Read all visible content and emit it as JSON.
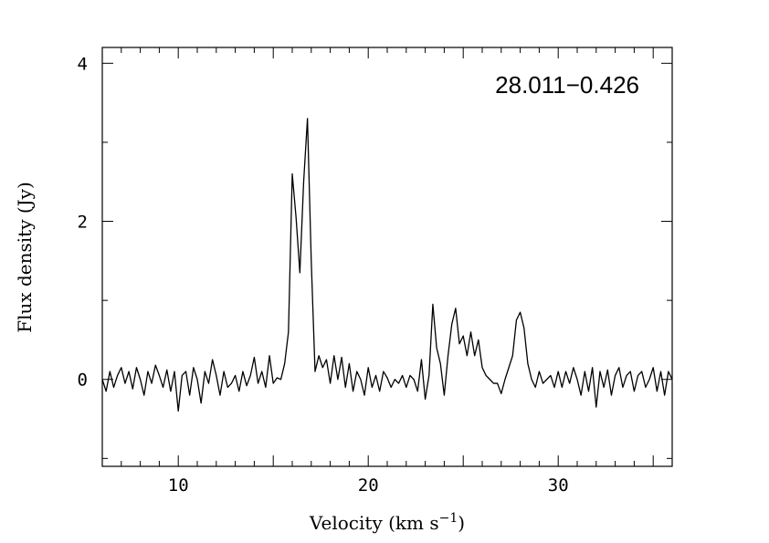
{
  "chart_data": {
    "type": "line",
    "title": "",
    "annotation": "28.011−0.426",
    "xlabel": "Velocity (km s",
    "xlabel_superscript": "−1",
    "xlabel_suffix": ")",
    "ylabel": "Flux density (Jy)",
    "xlim": [
      6.0,
      36.0
    ],
    "ylim": [
      -1.1,
      4.2
    ],
    "x_ticks": [
      10,
      20,
      30
    ],
    "x_tick_labels": [
      "10",
      "20",
      "30"
    ],
    "y_ticks": [
      0,
      2,
      4
    ],
    "y_tick_labels": [
      "0",
      "2",
      "4"
    ],
    "grid": false,
    "line_color": "#000000",
    "series": [
      {
        "x": [
          6.0,
          6.2,
          6.4,
          6.6,
          6.8,
          7.0,
          7.2,
          7.4,
          7.6,
          7.8,
          8.0,
          8.2,
          8.4,
          8.6,
          8.8,
          9.0,
          9.2,
          9.4,
          9.6,
          9.8,
          10.0,
          10.2,
          10.4,
          10.6,
          10.8,
          11.0,
          11.2,
          11.4,
          11.6,
          11.8,
          12.0,
          12.2,
          12.4,
          12.6,
          12.8,
          13.0,
          13.2,
          13.4,
          13.6,
          13.8,
          14.0,
          14.2,
          14.4,
          14.6,
          14.8,
          15.0,
          15.2,
          15.4,
          15.6,
          15.8,
          16.0,
          16.2,
          16.4,
          16.6,
          16.8,
          17.0,
          17.2,
          17.4,
          17.6,
          17.8,
          18.0,
          18.2,
          18.4,
          18.6,
          18.8,
          19.0,
          19.2,
          19.4,
          19.6,
          19.8,
          20.0,
          20.2,
          20.4,
          20.6,
          20.8,
          21.0,
          21.2,
          21.4,
          21.6,
          21.8,
          22.0,
          22.2,
          22.4,
          22.6,
          22.8,
          23.0,
          23.2,
          23.4,
          23.6,
          23.8,
          24.0,
          24.2,
          24.4,
          24.6,
          24.8,
          25.0,
          25.2,
          25.4,
          25.6,
          25.8,
          26.0,
          26.2,
          26.4,
          26.6,
          26.8,
          27.0,
          27.2,
          27.4,
          27.6,
          27.8,
          28.0,
          28.2,
          28.4,
          28.6,
          28.8,
          29.0,
          29.2,
          29.4,
          29.6,
          29.8,
          30.0,
          30.2,
          30.4,
          30.6,
          30.8,
          31.0,
          31.2,
          31.4,
          31.6,
          31.8,
          32.0,
          32.2,
          32.4,
          32.6,
          32.8,
          33.0,
          33.2,
          33.4,
          33.6,
          33.8,
          34.0,
          34.2,
          34.4,
          34.6,
          34.8,
          35.0,
          35.2,
          35.4,
          35.6,
          35.8,
          36.0
        ],
        "y": [
          0.0,
          -0.15,
          0.1,
          -0.1,
          0.05,
          0.15,
          -0.05,
          0.1,
          -0.12,
          0.15,
          0.0,
          -0.2,
          0.1,
          -0.05,
          0.18,
          0.05,
          -0.1,
          0.12,
          -0.15,
          0.1,
          -0.4,
          0.05,
          0.1,
          -0.2,
          0.15,
          0.0,
          -0.3,
          0.1,
          -0.05,
          0.25,
          0.05,
          -0.2,
          0.1,
          -0.1,
          -0.05,
          0.05,
          -0.15,
          0.1,
          -0.08,
          0.05,
          0.28,
          -0.05,
          0.1,
          -0.1,
          0.3,
          -0.05,
          0.02,
          0.0,
          0.2,
          0.6,
          2.6,
          2.05,
          1.35,
          2.5,
          3.3,
          1.5,
          0.1,
          0.3,
          0.15,
          0.25,
          -0.05,
          0.3,
          0.0,
          0.28,
          -0.1,
          0.2,
          -0.15,
          0.1,
          0.0,
          -0.2,
          0.15,
          -0.1,
          0.05,
          -0.15,
          0.1,
          0.02,
          -0.1,
          0.0,
          -0.05,
          0.05,
          -0.1,
          0.05,
          0.0,
          -0.15,
          0.25,
          -0.25,
          0.05,
          0.95,
          0.4,
          0.2,
          -0.2,
          0.3,
          0.7,
          0.9,
          0.45,
          0.55,
          0.3,
          0.6,
          0.3,
          0.5,
          0.15,
          0.05,
          0.0,
          -0.05,
          -0.05,
          -0.18,
          0.0,
          0.15,
          0.3,
          0.75,
          0.85,
          0.65,
          0.2,
          0.0,
          -0.1,
          0.1,
          -0.05,
          0.0,
          0.05,
          -0.1,
          0.1,
          -0.1,
          0.1,
          -0.05,
          0.15,
          0.0,
          -0.2,
          0.1,
          -0.15,
          0.15,
          -0.35,
          0.1,
          -0.1,
          0.12,
          -0.2,
          0.05,
          0.15,
          -0.1,
          0.05,
          0.1,
          -0.15,
          0.05,
          0.1,
          -0.1,
          0.0,
          0.15,
          -0.15,
          0.1,
          -0.2,
          0.1,
          0.0
        ]
      }
    ]
  }
}
